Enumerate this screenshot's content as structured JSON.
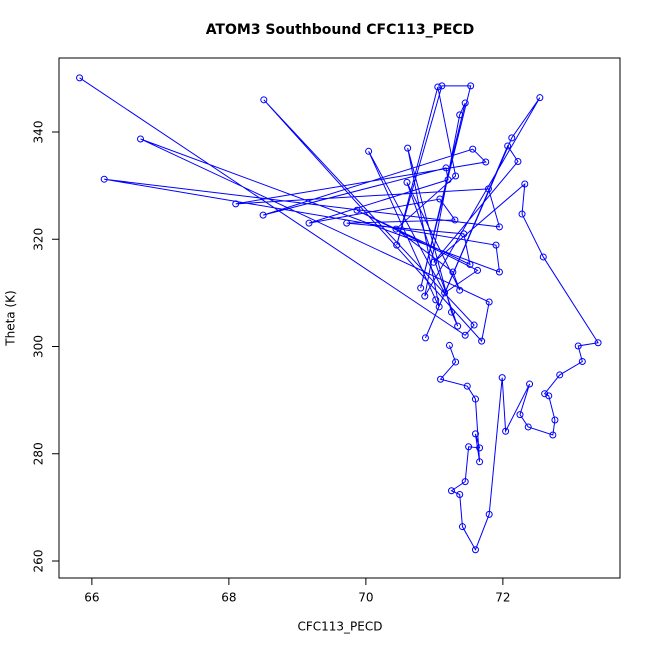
{
  "chart_data": {
    "type": "line",
    "title": "ATOM3 Southbound CFC113_PECD",
    "xlabel": "CFC113_PECD",
    "ylabel": "Theta (K)",
    "color": "#0000ff",
    "marker": "circle",
    "xlim": [
      65.52,
      73.71
    ],
    "ylim": [
      256.83,
      353.8
    ],
    "xticks": [
      66,
      68,
      70,
      72
    ],
    "yticks": [
      260,
      280,
      300,
      320,
      340
    ],
    "x": [
      65.82,
      71.45,
      71.58,
      68.51,
      71.69,
      71.8,
      66.71,
      71.95,
      71.9,
      66.18,
      71.95,
      71.79,
      68.1,
      71.75,
      71.56,
      68.5,
      71.17,
      71.2,
      69.17,
      71.08,
      71.3,
      69.72,
      71.43,
      71.52,
      69.87,
      71.63,
      71.15,
      70.04,
      71.02,
      71.07,
      70.61,
      71.25,
      71.34,
      70.6,
      71.37,
      71.27,
      70.44,
      71.31,
      71.05,
      70.45,
      71.11,
      71.53,
      70.8,
      71.45,
      71.37,
      70.86,
      72.54,
      72.13,
      70.87,
      72.07,
      72.22,
      70.99,
      72.32,
      72.28,
      72.59,
      73.39,
      73.1,
      73.16,
      72.83,
      72.61,
      72.67,
      72.76,
      72.73,
      72.37,
      72.25,
      72.39,
      72.04,
      71.99,
      71.8,
      71.6,
      71.41,
      71.37,
      71.25,
      71.45,
      71.5,
      71.66,
      71.6,
      71.66,
      71.6,
      71.48,
      71.09,
      71.31,
      71.22
    ],
    "values": [
      350.1,
      302.1,
      304.0,
      346.0,
      301.0,
      308.3,
      338.7,
      313.9,
      318.9,
      331.2,
      322.3,
      329.4,
      326.6,
      334.4,
      336.8,
      324.5,
      333.3,
      331.1,
      323.0,
      327.5,
      323.6,
      323.0,
      321.0,
      315.3,
      325.4,
      314.2,
      310.0,
      336.4,
      308.7,
      307.4,
      337.0,
      306.4,
      303.8,
      330.6,
      310.5,
      313.9,
      321.9,
      331.8,
      348.4,
      318.9,
      348.6,
      348.6,
      310.9,
      345.4,
      343.2,
      309.4,
      346.4,
      338.9,
      301.6,
      337.4,
      334.5,
      315.7,
      330.3,
      324.7,
      316.7,
      300.7,
      300.1,
      297.2,
      294.7,
      291.2,
      290.8,
      286.3,
      283.5,
      285.0,
      287.3,
      293.0,
      284.2,
      294.2,
      268.7,
      262.1,
      266.4,
      272.4,
      273.1,
      274.8,
      281.3,
      281.1,
      283.7,
      278.5,
      290.2,
      292.6,
      293.9,
      297.1,
      300.2
    ]
  }
}
